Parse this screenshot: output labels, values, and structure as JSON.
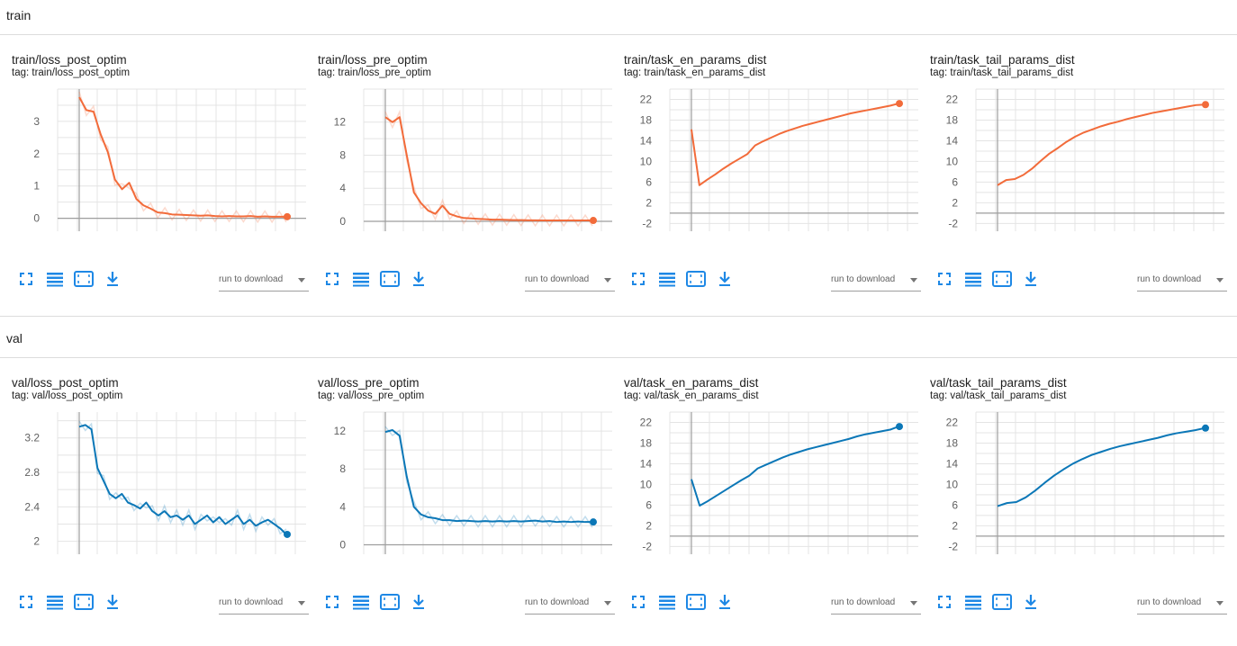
{
  "sections": [
    {
      "title": "train"
    },
    {
      "title": "val"
    }
  ],
  "cards": [
    {
      "title": "train/loss_post_optim",
      "tag": "tag: train/loss_post_optim"
    },
    {
      "title": "train/loss_pre_optim",
      "tag": "tag: train/loss_pre_optim"
    },
    {
      "title": "train/task_en_params_dist",
      "tag": "tag: train/task_en_params_dist"
    },
    {
      "title": "train/task_tail_params_dist",
      "tag": "tag: train/task_tail_params_dist"
    },
    {
      "title": "val/loss_post_optim",
      "tag": "tag: val/loss_post_optim"
    },
    {
      "title": "val/loss_pre_optim",
      "tag": "tag: val/loss_pre_optim"
    },
    {
      "title": "val/task_en_params_dist",
      "tag": "tag: val/task_en_params_dist"
    },
    {
      "title": "val/task_tail_params_dist",
      "tag": "tag: val/task_tail_params_dist"
    }
  ],
  "toolbar": {
    "download_label": "run to download",
    "icons": [
      "fullscreen-icon",
      "data-table-icon",
      "fit-domain-icon",
      "download-icon"
    ]
  },
  "colors": {
    "train": "#f26b3a",
    "val": "#0b77b7",
    "axis": "#9e9e9e",
    "grid": "#e4e4e4",
    "icon": "#1e88e5"
  },
  "chart_data": [
    {
      "type": "line",
      "ylim": [
        -0.4,
        4
      ],
      "yticks": [
        0,
        1,
        2,
        3
      ],
      "ytick_labels": [
        "0",
        "1",
        "2",
        "3"
      ],
      "series": [
        {
          "values": [
            3.75,
            3.35,
            3.3,
            2.6,
            2.05,
            1.2,
            0.9,
            1.1,
            0.6,
            0.4,
            0.3,
            0.18,
            0.16,
            0.12,
            0.11,
            0.1,
            0.09,
            0.08,
            0.09,
            0.07,
            0.06,
            0.07,
            0.06,
            0.06,
            0.07,
            0.05,
            0.06,
            0.05,
            0.05,
            0.05
          ]
        }
      ]
    },
    {
      "type": "line",
      "ylim": [
        -1.2,
        16
      ],
      "yticks": [
        0,
        4,
        8,
        12
      ],
      "ytick_labels": [
        "0",
        "4",
        "8",
        "12"
      ],
      "series": [
        {
          "values": [
            12.6,
            12.0,
            12.6,
            8.0,
            3.5,
            2.2,
            1.3,
            0.9,
            1.9,
            0.9,
            0.6,
            0.4,
            0.35,
            0.3,
            0.25,
            0.2,
            0.2,
            0.18,
            0.15,
            0.15,
            0.12,
            0.12,
            0.1,
            0.1,
            0.1,
            0.1,
            0.1,
            0.1,
            0.1,
            0.1
          ]
        }
      ]
    },
    {
      "type": "line",
      "ylim": [
        -3.5,
        24
      ],
      "yticks": [
        -2,
        2,
        6,
        10,
        14,
        18,
        22
      ],
      "ytick_labels": [
        "-2",
        "2",
        "6",
        "10",
        "14",
        "18",
        "22"
      ],
      "series": [
        {
          "values": [
            16.2,
            5.4,
            6.5,
            7.5,
            8.6,
            9.6,
            10.5,
            11.4,
            13.1,
            13.9,
            14.6,
            15.3,
            15.9,
            16.4,
            16.9,
            17.3,
            17.7,
            18.1,
            18.5,
            18.9,
            19.3,
            19.6,
            19.9,
            20.2,
            20.5,
            20.8,
            21.2
          ]
        }
      ]
    },
    {
      "type": "line",
      "ylim": [
        -3.5,
        24
      ],
      "yticks": [
        -2,
        2,
        6,
        10,
        14,
        18,
        22
      ],
      "ytick_labels": [
        "-2",
        "2",
        "6",
        "10",
        "14",
        "18",
        "22"
      ],
      "series": [
        {
          "values": [
            5.4,
            6.4,
            6.6,
            7.4,
            8.6,
            10.1,
            11.5,
            12.6,
            13.8,
            14.8,
            15.6,
            16.2,
            16.8,
            17.3,
            17.7,
            18.2,
            18.6,
            19.0,
            19.4,
            19.7,
            20.0,
            20.3,
            20.6,
            20.9,
            21.0
          ]
        }
      ]
    },
    {
      "type": "line",
      "ylim": [
        1.85,
        3.5
      ],
      "yticks": [
        2.0,
        2.4,
        2.8,
        3.2
      ],
      "ytick_labels": [
        "2",
        "2.4",
        "2.8",
        "3.2"
      ],
      "series": [
        {
          "values": [
            3.33,
            3.35,
            3.3,
            2.85,
            2.7,
            2.55,
            2.5,
            2.55,
            2.45,
            2.42,
            2.38,
            2.45,
            2.35,
            2.3,
            2.35,
            2.28,
            2.3,
            2.25,
            2.3,
            2.2,
            2.25,
            2.3,
            2.22,
            2.28,
            2.2,
            2.25,
            2.3,
            2.2,
            2.25,
            2.18,
            2.22,
            2.25,
            2.2,
            2.15,
            2.08
          ]
        }
      ]
    },
    {
      "type": "line",
      "ylim": [
        -1,
        14
      ],
      "yticks": [
        0,
        4,
        8,
        12
      ],
      "ytick_labels": [
        "0",
        "4",
        "8",
        "12"
      ],
      "series": [
        {
          "values": [
            11.9,
            12.1,
            11.5,
            7.2,
            4.0,
            3.2,
            2.9,
            2.8,
            2.6,
            2.6,
            2.5,
            2.55,
            2.5,
            2.45,
            2.5,
            2.45,
            2.5,
            2.45,
            2.5,
            2.45,
            2.5,
            2.55,
            2.45,
            2.5,
            2.4,
            2.45,
            2.4,
            2.45,
            2.4,
            2.4
          ]
        }
      ]
    },
    {
      "type": "line",
      "ylim": [
        -3.5,
        24
      ],
      "yticks": [
        -2,
        2,
        6,
        10,
        14,
        18,
        22
      ],
      "ytick_labels": [
        "-2",
        "2",
        "6",
        "10",
        "14",
        "18",
        "22"
      ],
      "series": [
        {
          "values": [
            11.0,
            5.9,
            6.8,
            7.8,
            8.8,
            9.8,
            10.8,
            11.7,
            13.1,
            13.8,
            14.5,
            15.2,
            15.8,
            16.3,
            16.8,
            17.2,
            17.6,
            18.0,
            18.4,
            18.8,
            19.3,
            19.7,
            20.0,
            20.3,
            20.6,
            21.2
          ]
        }
      ]
    },
    {
      "type": "line",
      "ylim": [
        -3.5,
        24
      ],
      "yticks": [
        -2,
        2,
        6,
        10,
        14,
        18,
        22
      ],
      "ytick_labels": [
        "-2",
        "2",
        "6",
        "10",
        "14",
        "18",
        "22"
      ],
      "series": [
        {
          "values": [
            5.8,
            6.4,
            6.6,
            7.5,
            8.8,
            10.3,
            11.7,
            12.9,
            14.0,
            14.9,
            15.7,
            16.3,
            16.9,
            17.4,
            17.8,
            18.2,
            18.6,
            19.0,
            19.5,
            19.9,
            20.2,
            20.5,
            20.9
          ]
        }
      ]
    }
  ]
}
